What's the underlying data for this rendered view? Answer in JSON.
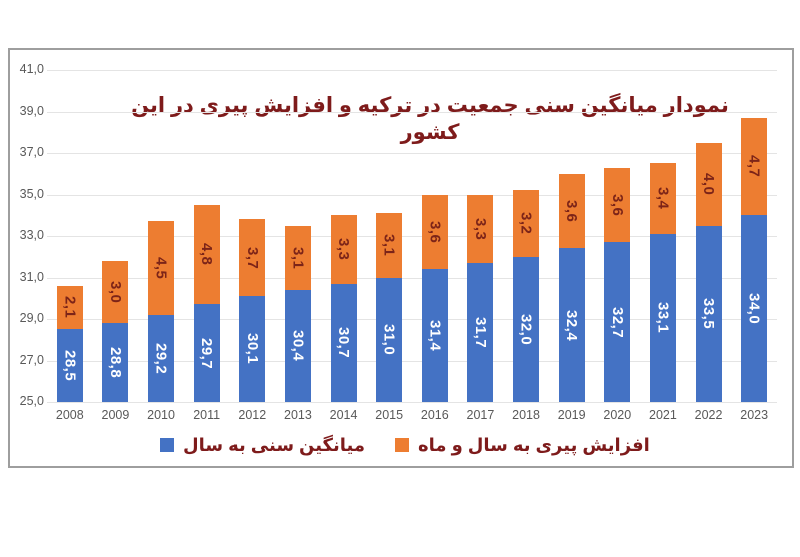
{
  "title": "نمودار میانگین سنی جمعیت در ترکیه و افزایش پیری در این کشور",
  "colors": {
    "avg_age_bar": "#4472c4",
    "aging_increase_bar": "#ed7d31",
    "title_text": "#7e1b1b",
    "legend_text": "#7e1b1b",
    "axis_text": "#595959",
    "value_label_on_blue": "#ffffff",
    "value_label_on_orange": "#7c2418",
    "gridline": "#e4e4e4",
    "panel_border": "#9e9e9e",
    "background": "#ffffff"
  },
  "chart_data": {
    "type": "bar",
    "stacked": true,
    "grid": true,
    "legend_position": "bottom",
    "decimal_separator": ",",
    "categories": [
      "2008",
      "2009",
      "2010",
      "2011",
      "2012",
      "2013",
      "2014",
      "2015",
      "2016",
      "2017",
      "2018",
      "2019",
      "2020",
      "2021",
      "2022",
      "2023"
    ],
    "series": [
      {
        "name": "میانگین سنی به سال",
        "color": "#4472c4",
        "values": [
          28.5,
          28.8,
          29.2,
          29.7,
          30.1,
          30.4,
          30.7,
          31.0,
          31.4,
          31.7,
          32.0,
          32.4,
          32.7,
          33.1,
          33.5,
          34.0
        ],
        "labels": [
          "28,5",
          "28,8",
          "29,2",
          "29,7",
          "30,1",
          "30,4",
          "30,7",
          "31,0",
          "31,4",
          "31,7",
          "32,0",
          "32,4",
          "32,7",
          "33,1",
          "33,5",
          "34,0"
        ]
      },
      {
        "name": "افزایش پیری به سال و ماه",
        "color": "#ed7d31",
        "values": [
          2.1,
          3.0,
          4.5,
          4.8,
          3.7,
          3.1,
          3.3,
          3.1,
          3.6,
          3.3,
          3.2,
          3.6,
          3.6,
          3.4,
          4.0,
          4.7
        ],
        "labels": [
          "2,1",
          "3,0",
          "4,5",
          "4,8",
          "3,7",
          "3,1",
          "3,3",
          "3,1",
          "3,6",
          "3,3",
          "3,2",
          "3,6",
          "3,6",
          "3,4",
          "4,0",
          "4,7"
        ]
      }
    ],
    "ylim": [
      25,
      41
    ],
    "yticks": [
      "25,0",
      "27,0",
      "29,0",
      "31,0",
      "33,0",
      "35,0",
      "37,0",
      "39,0",
      "41,0"
    ],
    "xlabel": "",
    "ylabel": ""
  }
}
